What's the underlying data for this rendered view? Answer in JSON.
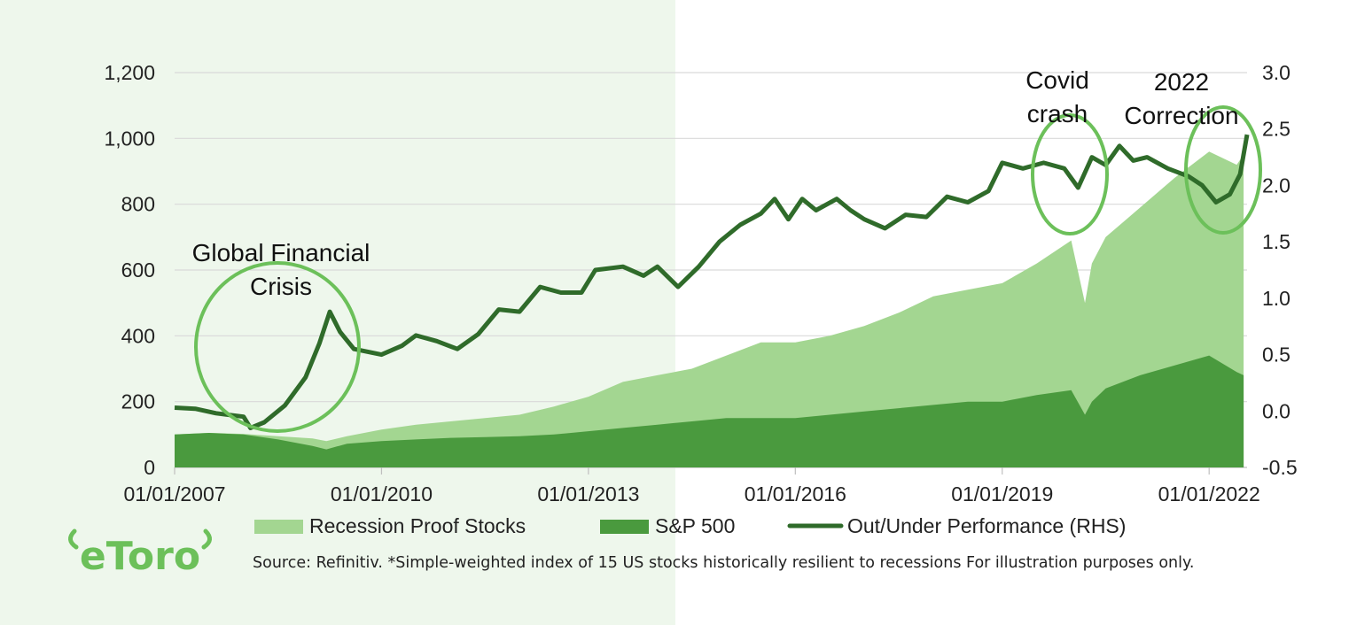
{
  "chart_data": {
    "type": "area",
    "x_ticks": [
      "01/01/2007",
      "01/01/2010",
      "01/01/2013",
      "01/01/2016",
      "01/01/2019",
      "01/01/2022"
    ],
    "y_left": {
      "ticks": [
        "0",
        "200",
        "400",
        "600",
        "800",
        "1,000",
        "1,200"
      ],
      "range": [
        0,
        1200
      ]
    },
    "y_right": {
      "ticks": [
        "-0.5",
        "0.0",
        "0.5",
        "1.0",
        "1.5",
        "2.0",
        "2.5",
        "3.0"
      ],
      "range": [
        -0.5,
        3.0
      ]
    },
    "grid": "horizontal",
    "legend_position": "bottom",
    "series": [
      {
        "name": "Recession Proof Stocks",
        "axis": "left",
        "kind": "area",
        "color": "#a3d691",
        "points": [
          [
            2007.0,
            100
          ],
          [
            2007.5,
            105
          ],
          [
            2008.0,
            102
          ],
          [
            2008.5,
            95
          ],
          [
            2009.0,
            88
          ],
          [
            2009.2,
            80
          ],
          [
            2009.5,
            95
          ],
          [
            2010.0,
            115
          ],
          [
            2010.5,
            130
          ],
          [
            2011.0,
            140
          ],
          [
            2011.5,
            150
          ],
          [
            2012.0,
            160
          ],
          [
            2012.5,
            185
          ],
          [
            2013.0,
            215
          ],
          [
            2013.5,
            260
          ],
          [
            2014.0,
            280
          ],
          [
            2014.5,
            300
          ],
          [
            2015.0,
            340
          ],
          [
            2015.5,
            380
          ],
          [
            2016.0,
            380
          ],
          [
            2016.5,
            400
          ],
          [
            2017.0,
            430
          ],
          [
            2017.5,
            470
          ],
          [
            2018.0,
            520
          ],
          [
            2018.5,
            540
          ],
          [
            2019.0,
            560
          ],
          [
            2019.5,
            620
          ],
          [
            2020.0,
            690
          ],
          [
            2020.2,
            500
          ],
          [
            2020.3,
            620
          ],
          [
            2020.5,
            700
          ],
          [
            2021.0,
            790
          ],
          [
            2021.5,
            880
          ],
          [
            2022.0,
            960
          ],
          [
            2022.4,
            920
          ],
          [
            2022.5,
            950
          ]
        ]
      },
      {
        "name": "S&P 500",
        "axis": "left",
        "kind": "area",
        "color": "#4a9a3e",
        "points": [
          [
            2007.0,
            100
          ],
          [
            2007.5,
            105
          ],
          [
            2008.0,
            100
          ],
          [
            2008.5,
            85
          ],
          [
            2009.0,
            65
          ],
          [
            2009.2,
            55
          ],
          [
            2009.5,
            72
          ],
          [
            2010.0,
            80
          ],
          [
            2010.5,
            85
          ],
          [
            2011.0,
            90
          ],
          [
            2011.5,
            92
          ],
          [
            2012.0,
            95
          ],
          [
            2012.5,
            100
          ],
          [
            2013.0,
            110
          ],
          [
            2013.5,
            120
          ],
          [
            2014.0,
            130
          ],
          [
            2014.5,
            140
          ],
          [
            2015.0,
            150
          ],
          [
            2015.5,
            150
          ],
          [
            2016.0,
            150
          ],
          [
            2016.5,
            160
          ],
          [
            2017.0,
            170
          ],
          [
            2017.5,
            180
          ],
          [
            2018.0,
            190
          ],
          [
            2018.5,
            200
          ],
          [
            2019.0,
            200
          ],
          [
            2019.5,
            220
          ],
          [
            2020.0,
            235
          ],
          [
            2020.2,
            160
          ],
          [
            2020.3,
            200
          ],
          [
            2020.5,
            240
          ],
          [
            2021.0,
            280
          ],
          [
            2021.5,
            310
          ],
          [
            2022.0,
            340
          ],
          [
            2022.4,
            290
          ],
          [
            2022.5,
            280
          ]
        ]
      },
      {
        "name": "Out/Under Performance (RHS)",
        "axis": "right",
        "kind": "line",
        "color": "#2f6b2a",
        "points": [
          [
            2007.0,
            0.03
          ],
          [
            2007.3,
            0.02
          ],
          [
            2007.6,
            -0.02
          ],
          [
            2008.0,
            -0.05
          ],
          [
            2008.1,
            -0.15
          ],
          [
            2008.3,
            -0.1
          ],
          [
            2008.6,
            0.05
          ],
          [
            2008.9,
            0.3
          ],
          [
            2009.1,
            0.6
          ],
          [
            2009.25,
            0.88
          ],
          [
            2009.4,
            0.7
          ],
          [
            2009.6,
            0.55
          ],
          [
            2010.0,
            0.5
          ],
          [
            2010.3,
            0.58
          ],
          [
            2010.5,
            0.67
          ],
          [
            2010.8,
            0.62
          ],
          [
            2011.1,
            0.55
          ],
          [
            2011.4,
            0.68
          ],
          [
            2011.7,
            0.9
          ],
          [
            2012.0,
            0.88
          ],
          [
            2012.3,
            1.1
          ],
          [
            2012.6,
            1.05
          ],
          [
            2012.9,
            1.05
          ],
          [
            2013.1,
            1.25
          ],
          [
            2013.5,
            1.28
          ],
          [
            2013.8,
            1.2
          ],
          [
            2014.0,
            1.28
          ],
          [
            2014.3,
            1.1
          ],
          [
            2014.6,
            1.28
          ],
          [
            2014.9,
            1.5
          ],
          [
            2015.2,
            1.65
          ],
          [
            2015.5,
            1.75
          ],
          [
            2015.7,
            1.88
          ],
          [
            2015.9,
            1.7
          ],
          [
            2016.1,
            1.88
          ],
          [
            2016.3,
            1.78
          ],
          [
            2016.6,
            1.88
          ],
          [
            2016.8,
            1.78
          ],
          [
            2017.0,
            1.7
          ],
          [
            2017.3,
            1.62
          ],
          [
            2017.6,
            1.74
          ],
          [
            2017.9,
            1.72
          ],
          [
            2018.2,
            1.9
          ],
          [
            2018.5,
            1.85
          ],
          [
            2018.8,
            1.95
          ],
          [
            2019.0,
            2.2
          ],
          [
            2019.3,
            2.15
          ],
          [
            2019.6,
            2.2
          ],
          [
            2019.9,
            2.15
          ],
          [
            2020.1,
            1.98
          ],
          [
            2020.3,
            2.25
          ],
          [
            2020.5,
            2.18
          ],
          [
            2020.7,
            2.35
          ],
          [
            2020.9,
            2.22
          ],
          [
            2021.1,
            2.25
          ],
          [
            2021.4,
            2.15
          ],
          [
            2021.7,
            2.08
          ],
          [
            2021.9,
            2.0
          ],
          [
            2022.1,
            1.85
          ],
          [
            2022.3,
            1.92
          ],
          [
            2022.45,
            2.1
          ],
          [
            2022.55,
            2.45
          ]
        ]
      }
    ],
    "annotations": [
      {
        "lines": [
          "Global Financial",
          "Crisis"
        ]
      },
      {
        "lines": [
          "Covid",
          "crash"
        ]
      },
      {
        "lines": [
          "2022",
          "Correction"
        ]
      }
    ]
  },
  "source_note": "Source: Refinitiv. *Simple-weighted index of 15 US stocks historically resilient to recessions For illustration purposes only.",
  "logo_text": "eToro",
  "colors": {
    "left_panel_bg": "#eef7ec",
    "annotation_circle": "#6cc05a",
    "grid": "#d9d9d9",
    "logo": "#6cc05a"
  }
}
